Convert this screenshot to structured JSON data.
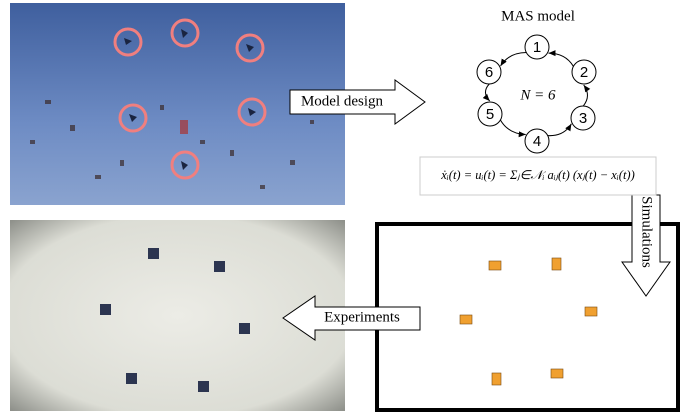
{
  "title": "MAS model",
  "nodes": [
    {
      "label": "1"
    },
    {
      "label": "2"
    },
    {
      "label": "3"
    },
    {
      "label": "4"
    },
    {
      "label": "5"
    },
    {
      "label": "6"
    }
  ],
  "graph_label": "N = 6",
  "equation": "ẋᵢ(t) = uᵢ(t) = Σⱼ∈𝒩ᵢ aᵢⱼ(t) (xⱼ(t) − xᵢ(t))",
  "arrows": [
    {
      "label": "Model design"
    },
    {
      "label": "Simulations"
    },
    {
      "label": "Experiments"
    }
  ]
}
